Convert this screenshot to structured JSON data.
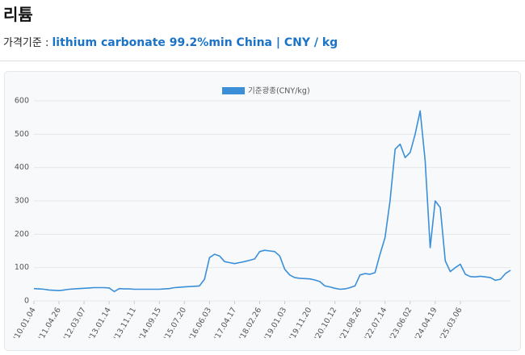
{
  "header": {
    "title": "리튬",
    "label": "가격기준 :",
    "value": "lithium carbonate 99.2%min China | CNY / kg"
  },
  "chart_data": {
    "type": "line",
    "categories": [
      "'10.01.04",
      null,
      null,
      null,
      null,
      "'11.04.26",
      null,
      null,
      null,
      null,
      "'12.03.07",
      null,
      null,
      null,
      null,
      "'13.01.14",
      null,
      null,
      null,
      null,
      "'13.11.11",
      null,
      null,
      null,
      null,
      "'14.09.15",
      null,
      null,
      null,
      null,
      "'15.07.20",
      null,
      null,
      null,
      null,
      "'16.06.03",
      null,
      null,
      null,
      null,
      "'17.04.17",
      null,
      null,
      null,
      null,
      "'18.02.26",
      null,
      null,
      null,
      null,
      "'19.01.03",
      null,
      null,
      null,
      null,
      "'19.11.20",
      null,
      null,
      null,
      null,
      "'20.10.12",
      null,
      null,
      null,
      null,
      "'21.08.26",
      null,
      null,
      null,
      null,
      "'22.07.14",
      null,
      null,
      null,
      null,
      "'23.06.02",
      null,
      null,
      null,
      null,
      "'24.04.19",
      null,
      null,
      null,
      null,
      "'25.03.06",
      null,
      null,
      null,
      null,
      null,
      null,
      null,
      null,
      null,
      null
    ],
    "series": [
      {
        "name": "기준광종(CNY/kg)",
        "color": "#3b8fd9",
        "values": [
          37,
          36,
          35,
          33,
          32,
          31,
          33,
          35,
          36,
          37,
          38,
          39,
          40,
          40,
          40,
          39,
          28,
          37,
          36,
          36,
          35,
          35,
          35,
          35,
          35,
          35,
          36,
          37,
          40,
          41,
          42,
          43,
          44,
          45,
          65,
          130,
          140,
          135,
          118,
          115,
          112,
          115,
          118,
          122,
          126,
          148,
          152,
          150,
          148,
          135,
          95,
          78,
          70,
          68,
          67,
          66,
          63,
          58,
          45,
          42,
          38,
          35,
          36,
          40,
          45,
          78,
          82,
          80,
          85,
          140,
          190,
          300,
          455,
          470,
          430,
          445,
          500,
          570,
          420,
          160,
          300,
          280,
          120,
          88,
          100,
          110,
          80,
          73,
          72,
          74,
          72,
          70,
          62,
          65,
          82,
          92
        ]
      }
    ],
    "ylim": [
      0,
      600
    ],
    "yticks": [
      0,
      100,
      200,
      300,
      400,
      500,
      600
    ],
    "grid": true,
    "legend": "top"
  }
}
